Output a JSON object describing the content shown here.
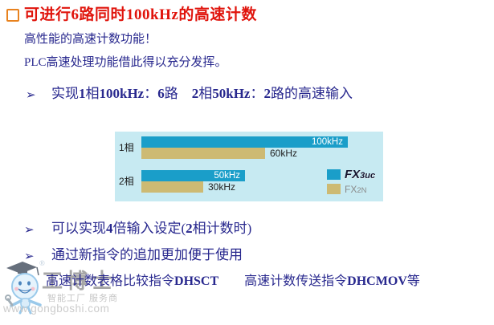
{
  "slide": {
    "title": {
      "segments": [
        {
          "t": "可进行",
          "b": false
        },
        {
          "t": "6",
          "b": true
        },
        {
          "t": "路同时",
          "b": false
        },
        {
          "t": "100kHz",
          "b": true
        },
        {
          "t": "的高速计数",
          "b": false
        }
      ]
    },
    "intro": {
      "line1": "高性能的高速计数功能！",
      "line2": "PLC高速处理功能借此得以充分发挥。"
    },
    "bullet_marker": "➢",
    "bullet1": {
      "segments": [
        {
          "t": "实现",
          "b": false
        },
        {
          "t": "1",
          "b": true
        },
        {
          "t": "相",
          "b": false
        },
        {
          "t": "100kHz",
          "b": true
        },
        {
          "t": "：",
          "b": false
        },
        {
          "t": "6",
          "b": true
        },
        {
          "t": "路　",
          "b": false
        },
        {
          "t": "2",
          "b": true
        },
        {
          "t": "相",
          "b": false
        },
        {
          "t": "50kHz",
          "b": true
        },
        {
          "t": "：",
          "b": false
        },
        {
          "t": "2",
          "b": true
        },
        {
          "t": "路的高速输入",
          "b": false
        }
      ]
    },
    "bullet2": {
      "segments": [
        {
          "t": "可以实现",
          "b": false
        },
        {
          "t": "4",
          "b": true
        },
        {
          "t": "倍输入设定(",
          "b": false
        },
        {
          "t": "2",
          "b": true
        },
        {
          "t": "相计数时)",
          "b": false
        }
      ]
    },
    "bullet3": {
      "segments": [
        {
          "t": "通过新指令的追加更加便于使用",
          "b": false
        }
      ]
    },
    "subline": {
      "segments": [
        {
          "t": "高速计数表格比较指令",
          "b": false
        },
        {
          "t": "DHSCT",
          "b": true
        },
        {
          "t": "　　",
          "b": false
        },
        {
          "t": "高速计数传送指令",
          "b": false
        },
        {
          "t": "DHCMOV",
          "b": true
        },
        {
          "t": "等",
          "b": false
        }
      ]
    }
  },
  "chart_data": {
    "type": "bar",
    "orientation": "horizontal",
    "title": "",
    "categories": [
      "1相",
      "2相"
    ],
    "series": [
      {
        "name": "FX3UC",
        "color": "#1A9EC9",
        "values_khz": [
          100,
          50
        ],
        "bar_labels": [
          "100kHz",
          "50kHz"
        ],
        "label_inside": true,
        "label_color": "#FFFFFF"
      },
      {
        "name": "FX2N",
        "color": "#CDBA73",
        "values_khz": [
          60,
          30
        ],
        "bar_labels": [
          "60kHz",
          "30kHz"
        ],
        "label_inside": false,
        "label_color": "#222222"
      }
    ],
    "unit": "kHz",
    "xlim": [
      0,
      130
    ],
    "grid": false,
    "panel_bg": "#C7EAF2",
    "legend_position": "right-bottom",
    "legend": [
      {
        "brand": "FX",
        "suffix": "3uc",
        "style": "logo",
        "color": "#1A9EC9"
      },
      {
        "brand": "FX",
        "suffix": "2N",
        "style": "plain",
        "color": "#CDBA73"
      }
    ]
  },
  "watermark": {
    "brand_calligraphy": "工博士",
    "registered_mark": "®",
    "tagline": "智能工厂 服务商",
    "url": "www.gongboshi.com"
  },
  "colors": {
    "title_red": "#E0140C",
    "bullet_orange": "#E8821E",
    "body_navy": "#28288E",
    "chart_bg": "#C7EAF2"
  }
}
